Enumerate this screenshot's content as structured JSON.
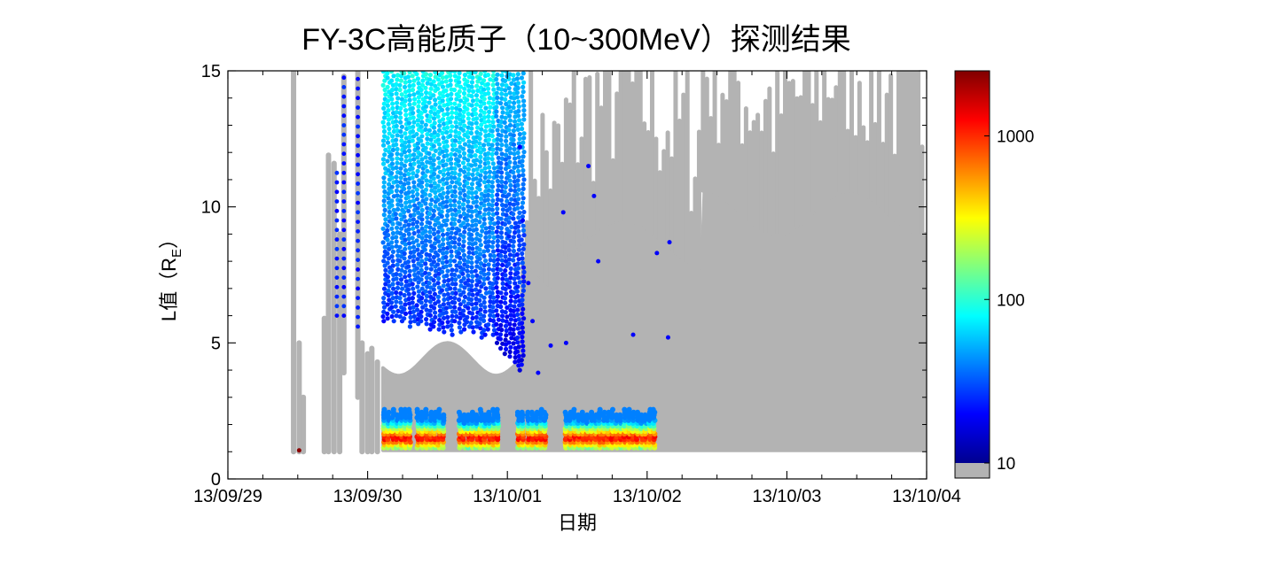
{
  "chart_data": {
    "type": "scatter",
    "title": "FY-3C高能质子（10~300MeV）探测结果",
    "xlabel": "日期",
    "ylabel_main": "L值（R",
    "ylabel_sub": "E",
    "ylabel_close": "）",
    "x_ticks": [
      "13/09/29",
      "13/09/30",
      "13/10/01",
      "13/10/02",
      "13/10/03",
      "13/10/04"
    ],
    "xlim": [
      0,
      5
    ],
    "y_ticks": [
      "0",
      "5",
      "10",
      "15"
    ],
    "ylim": [
      0,
      15
    ],
    "colorbar": {
      "scale": "log",
      "range": [
        10,
        2500
      ],
      "tick_labels": [
        "10",
        "100",
        "1000"
      ],
      "tick_values": [
        10,
        100,
        1000
      ],
      "below_range_color": "#b3b3b3"
    },
    "background_color": "#b3b3b3",
    "passes": [
      {
        "t": 0.47,
        "top": 15,
        "bottom": 1.0
      },
      {
        "t": 0.51,
        "top": 5.0,
        "bottom": 1.0
      },
      {
        "t": 0.54,
        "top": 3.0,
        "bottom": 1.0
      },
      {
        "t": 0.69,
        "top": 5.9,
        "bottom": 1.0
      },
      {
        "t": 0.72,
        "top": 11.9,
        "bottom": 1.0
      },
      {
        "t": 0.76,
        "top": 11.6,
        "bottom": 1.0
      },
      {
        "t": 0.8,
        "top": 9.0,
        "bottom": 1.0
      },
      {
        "t": 0.83,
        "top": 14.8,
        "bottom": 3.9
      },
      {
        "t": 0.93,
        "top": 15,
        "bottom": 3.0
      },
      {
        "t": 0.96,
        "top": 5.0,
        "bottom": 1.0
      },
      {
        "t": 1.0,
        "top": 4.6,
        "bottom": 1.0
      },
      {
        "t": 1.03,
        "top": 4.8,
        "bottom": 1.0
      },
      {
        "t": 1.07,
        "top": 4.3,
        "bottom": 1.0
      }
    ],
    "proton_stripes": [
      {
        "t": 1.12,
        "top": 15,
        "bottom": 5.8
      },
      {
        "t": 1.15,
        "top": 15,
        "bottom": 5.9
      },
      {
        "t": 1.18,
        "top": 15,
        "bottom": 5.8
      },
      {
        "t": 1.21,
        "top": 15,
        "bottom": 6.0
      },
      {
        "t": 1.24,
        "top": 15,
        "bottom": 5.8
      },
      {
        "t": 1.27,
        "top": 15,
        "bottom": 5.9
      },
      {
        "t": 1.3,
        "top": 15,
        "bottom": 5.6
      },
      {
        "t": 1.33,
        "top": 15,
        "bottom": 5.8
      },
      {
        "t": 1.36,
        "top": 15,
        "bottom": 5.7
      },
      {
        "t": 1.39,
        "top": 15,
        "bottom": 5.8
      },
      {
        "t": 1.42,
        "top": 15,
        "bottom": 5.7
      },
      {
        "t": 1.45,
        "top": 15,
        "bottom": 5.5
      },
      {
        "t": 1.48,
        "top": 15,
        "bottom": 5.6
      },
      {
        "t": 1.51,
        "top": 15,
        "bottom": 5.5
      },
      {
        "t": 1.54,
        "top": 15,
        "bottom": 5.4
      },
      {
        "t": 1.57,
        "top": 15,
        "bottom": 5.6
      },
      {
        "t": 1.6,
        "top": 15,
        "bottom": 5.3
      },
      {
        "t": 1.63,
        "top": 15,
        "bottom": 5.8
      },
      {
        "t": 1.66,
        "top": 15,
        "bottom": 5.4
      },
      {
        "t": 1.69,
        "top": 15,
        "bottom": 5.5
      },
      {
        "t": 1.72,
        "top": 15,
        "bottom": 5.6
      },
      {
        "t": 1.75,
        "top": 15,
        "bottom": 5.4
      },
      {
        "t": 1.78,
        "top": 15,
        "bottom": 5.6
      },
      {
        "t": 1.81,
        "top": 15,
        "bottom": 5.2
      },
      {
        "t": 1.84,
        "top": 15,
        "bottom": 5.3
      },
      {
        "t": 1.87,
        "top": 15,
        "bottom": 5.5
      },
      {
        "t": 1.9,
        "top": 15,
        "bottom": 5.3
      },
      {
        "t": 1.93,
        "top": 15,
        "bottom": 5.0
      },
      {
        "t": 1.96,
        "top": 15,
        "bottom": 4.8
      },
      {
        "t": 1.99,
        "top": 15,
        "bottom": 4.6
      },
      {
        "t": 2.02,
        "top": 15,
        "bottom": 4.5
      },
      {
        "t": 2.05,
        "top": 15,
        "bottom": 4.3
      },
      {
        "t": 2.08,
        "top": 15,
        "bottom": 4.0
      },
      {
        "t": 2.11,
        "top": 15,
        "bottom": 4.2
      }
    ],
    "inner_belt_passes": [
      1.12,
      1.15,
      1.18,
      1.21,
      1.24,
      1.27,
      1.3,
      1.36,
      1.39,
      1.42,
      1.45,
      1.48,
      1.51,
      1.54,
      1.66,
      1.69,
      1.72,
      1.75,
      1.78,
      1.81,
      1.84,
      1.87,
      1.9,
      1.93,
      2.08,
      2.11,
      2.15,
      2.18,
      2.21,
      2.24,
      2.27,
      2.42,
      2.45,
      2.48,
      2.51,
      2.54,
      2.57,
      2.6,
      2.63,
      2.66,
      2.69,
      2.72,
      2.75,
      2.78,
      2.81,
      2.84,
      2.87,
      2.9,
      2.93,
      2.96,
      2.99,
      3.02,
      3.05
    ]
  }
}
